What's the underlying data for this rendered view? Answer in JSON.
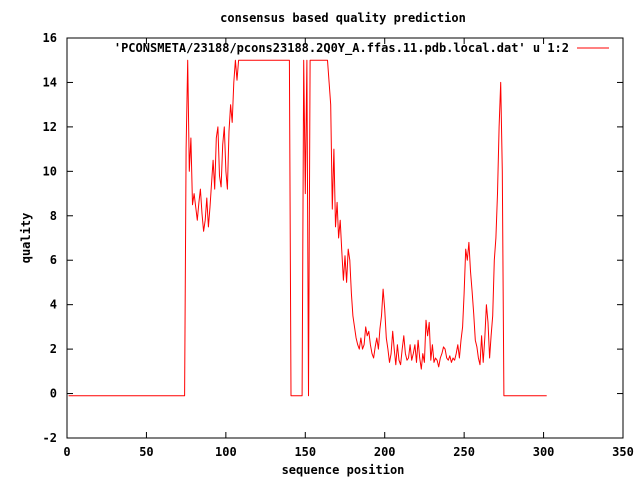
{
  "chart_data": {
    "type": "line",
    "title": "consensus based quality prediction",
    "xlabel": "sequence position",
    "ylabel": "quality",
    "xlim": [
      0,
      350
    ],
    "ylim": [
      -2,
      16
    ],
    "x_ticks": [
      "0",
      "50",
      "100",
      "150",
      "200",
      "250",
      "300",
      "350"
    ],
    "y_ticks": [
      "-2",
      "0",
      "2",
      "4",
      "6",
      "8",
      "10",
      "12",
      "14",
      "16"
    ],
    "grid": false,
    "legend_position": "top-right",
    "series": [
      {
        "name": "'PCONSMETA/23188/pcons23188.2Q0Y_A.ffas.11.pdb.local.dat' u 1:2",
        "color": "#ff0000",
        "points": [
          [
            1,
            -0.1
          ],
          [
            74,
            -0.1
          ],
          [
            75,
            11
          ],
          [
            76,
            15
          ],
          [
            77,
            10
          ],
          [
            78,
            11.5
          ],
          [
            79,
            8.5
          ],
          [
            80,
            9
          ],
          [
            81,
            8.4
          ],
          [
            82,
            7.8
          ],
          [
            83,
            8.6
          ],
          [
            84,
            9.2
          ],
          [
            85,
            8.1
          ],
          [
            86,
            7.3
          ],
          [
            87,
            7.8
          ],
          [
            88,
            8.8
          ],
          [
            89,
            7.5
          ],
          [
            90,
            8.4
          ],
          [
            91,
            9.5
          ],
          [
            92,
            10.5
          ],
          [
            93,
            9.2
          ],
          [
            94,
            11.5
          ],
          [
            95,
            12
          ],
          [
            96,
            9.8
          ],
          [
            97,
            9.3
          ],
          [
            98,
            11.2
          ],
          [
            99,
            12
          ],
          [
            100,
            10
          ],
          [
            101,
            9.2
          ],
          [
            102,
            11.8
          ],
          [
            103,
            13
          ],
          [
            104,
            12.2
          ],
          [
            105,
            14
          ],
          [
            106,
            15
          ],
          [
            107,
            14.1
          ],
          [
            108,
            15
          ],
          [
            140,
            15
          ],
          [
            141,
            -0.1
          ],
          [
            148,
            -0.1
          ],
          [
            149,
            15
          ],
          [
            150,
            9
          ],
          [
            151,
            15
          ],
          [
            152,
            -0.1
          ],
          [
            153,
            15
          ],
          [
            164,
            15
          ],
          [
            165,
            14
          ],
          [
            166,
            13
          ],
          [
            167,
            8.3
          ],
          [
            168,
            11
          ],
          [
            169,
            7.5
          ],
          [
            170,
            8.6
          ],
          [
            171,
            7
          ],
          [
            172,
            7.8
          ],
          [
            173,
            6.4
          ],
          [
            174,
            5.1
          ],
          [
            175,
            6.2
          ],
          [
            176,
            5
          ],
          [
            177,
            6.5
          ],
          [
            178,
            6
          ],
          [
            179,
            4.5
          ],
          [
            180,
            3.5
          ],
          [
            181,
            3
          ],
          [
            182,
            2.5
          ],
          [
            183,
            2.2
          ],
          [
            184,
            2
          ],
          [
            185,
            2.5
          ],
          [
            186,
            2
          ],
          [
            187,
            2.2
          ],
          [
            188,
            3
          ],
          [
            189,
            2.6
          ],
          [
            190,
            2.8
          ],
          [
            191,
            2.2
          ],
          [
            192,
            1.8
          ],
          [
            193,
            1.6
          ],
          [
            194,
            2.1
          ],
          [
            195,
            2.5
          ],
          [
            196,
            2
          ],
          [
            197,
            2.9
          ],
          [
            198,
            3.5
          ],
          [
            199,
            4.7
          ],
          [
            200,
            3.8
          ],
          [
            201,
            2.5
          ],
          [
            202,
            2
          ],
          [
            203,
            1.4
          ],
          [
            204,
            1.8
          ],
          [
            205,
            2.8
          ],
          [
            206,
            2
          ],
          [
            207,
            1.3
          ],
          [
            208,
            2.2
          ],
          [
            209,
            1.5
          ],
          [
            210,
            1.3
          ],
          [
            211,
            2
          ],
          [
            212,
            2.6
          ],
          [
            213,
            1.8
          ],
          [
            214,
            1.5
          ],
          [
            215,
            1.6
          ],
          [
            216,
            2.2
          ],
          [
            217,
            1.5
          ],
          [
            218,
            1.8
          ],
          [
            219,
            2.2
          ],
          [
            220,
            1.4
          ],
          [
            221,
            2.4
          ],
          [
            222,
            1.6
          ],
          [
            223,
            1.1
          ],
          [
            224,
            1.8
          ],
          [
            225,
            1.4
          ],
          [
            226,
            3.3
          ],
          [
            227,
            2.6
          ],
          [
            228,
            3.2
          ],
          [
            229,
            1.5
          ],
          [
            230,
            2.2
          ],
          [
            231,
            1.4
          ],
          [
            232,
            1.6
          ],
          [
            233,
            1.5
          ],
          [
            234,
            1.2
          ],
          [
            235,
            1.6
          ],
          [
            236,
            1.8
          ],
          [
            237,
            2.1
          ],
          [
            238,
            2
          ],
          [
            239,
            1.6
          ],
          [
            240,
            1.5
          ],
          [
            241,
            1.7
          ],
          [
            242,
            1.4
          ],
          [
            243,
            1.6
          ],
          [
            244,
            1.5
          ],
          [
            245,
            1.8
          ],
          [
            246,
            2.2
          ],
          [
            247,
            1.6
          ],
          [
            248,
            2.4
          ],
          [
            249,
            3
          ],
          [
            250,
            4.5
          ],
          [
            251,
            6.5
          ],
          [
            252,
            6
          ],
          [
            253,
            6.8
          ],
          [
            254,
            5.5
          ],
          [
            255,
            4.6
          ],
          [
            256,
            3.6
          ],
          [
            257,
            2.4
          ],
          [
            258,
            2.1
          ],
          [
            259,
            1.6
          ],
          [
            260,
            1.3
          ],
          [
            261,
            2.6
          ],
          [
            262,
            1.4
          ],
          [
            263,
            2.5
          ],
          [
            264,
            4
          ],
          [
            265,
            3.2
          ],
          [
            266,
            1.6
          ],
          [
            267,
            2.6
          ],
          [
            268,
            3.5
          ],
          [
            269,
            6
          ],
          [
            270,
            7
          ],
          [
            271,
            9
          ],
          [
            272,
            12
          ],
          [
            273,
            14
          ],
          [
            274,
            10
          ],
          [
            275,
            -0.1
          ],
          [
            302,
            -0.1
          ]
        ]
      }
    ]
  }
}
